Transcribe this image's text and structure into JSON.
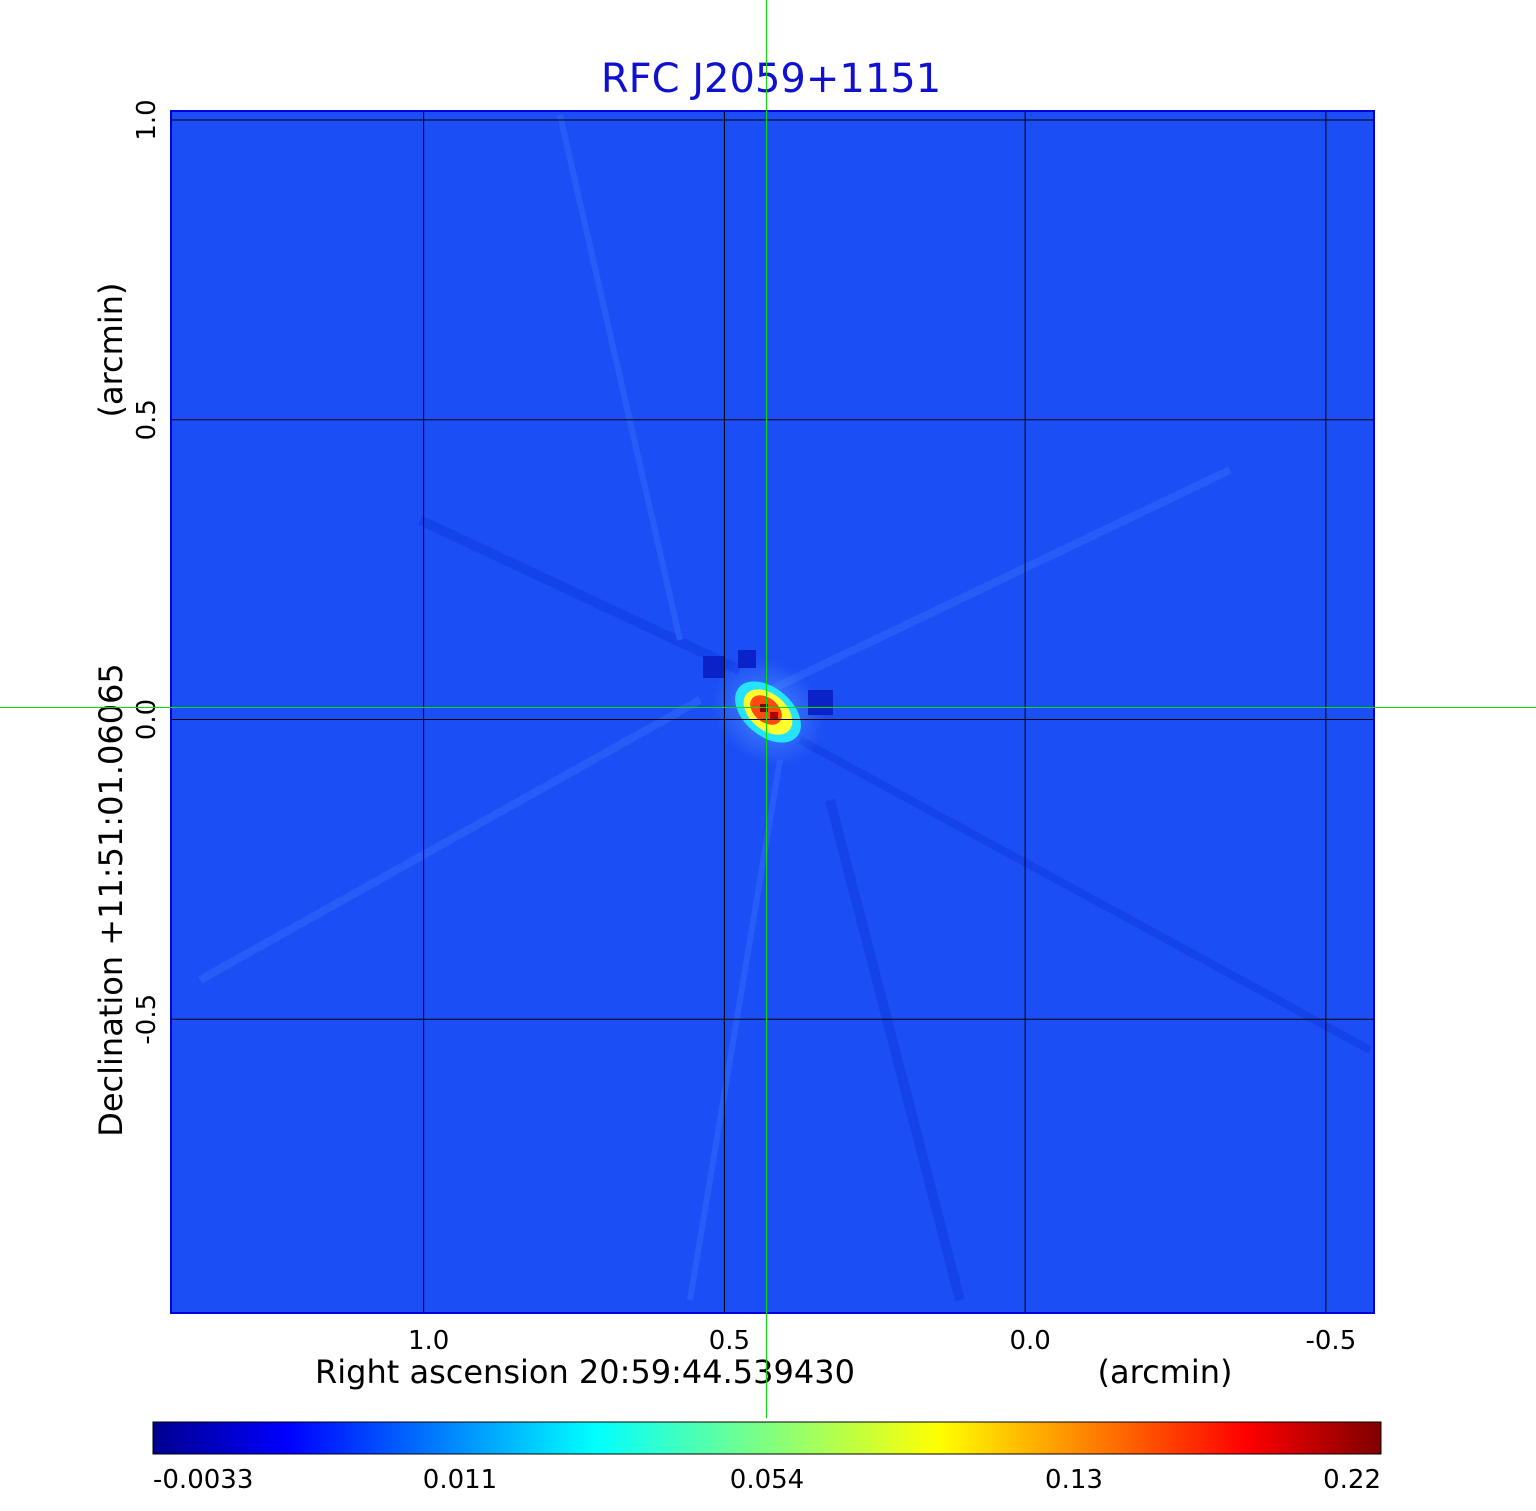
{
  "chart_data": {
    "type": "heatmap",
    "title": "RFC J2059+1151",
    "xlabel": "Right ascension  20:59:44.539430",
    "xunit": "(arcmin)",
    "ylabel": "Declination  +11:51:01.06065",
    "yunit": "(arcmin)",
    "xlim": [
      1.42,
      -0.58
    ],
    "ylim": [
      -0.99,
      1.015
    ],
    "x_ticks": [
      {
        "value": 1.0,
        "label": "1.0"
      },
      {
        "value": 0.5,
        "label": "0.5"
      },
      {
        "value": 0.0,
        "label": "0.0"
      },
      {
        "value": -0.5,
        "label": "-0.5"
      }
    ],
    "y_ticks": [
      {
        "value": 1.0,
        "label": "1.0"
      },
      {
        "value": 0.5,
        "label": "0.5"
      },
      {
        "value": 0.0,
        "label": "0.0"
      },
      {
        "value": -0.5,
        "label": "-0.5"
      }
    ],
    "grid": true,
    "crosshair": {
      "x": 0.43,
      "y": 0.02
    },
    "colormap": "jet",
    "colorbar": {
      "min": -0.0033,
      "max": 0.22,
      "tick_labels": [
        "-0.0033",
        "0.011",
        "0.054",
        "0.13",
        "0.22"
      ]
    },
    "background_value": 0.003,
    "peak": {
      "x": 0.43,
      "y": 0.02,
      "value": 0.22
    }
  },
  "colors": {
    "title": "#1010d0",
    "background_field": "#1c4ef5",
    "crosshair": "#00e000",
    "grid": "#000000"
  }
}
